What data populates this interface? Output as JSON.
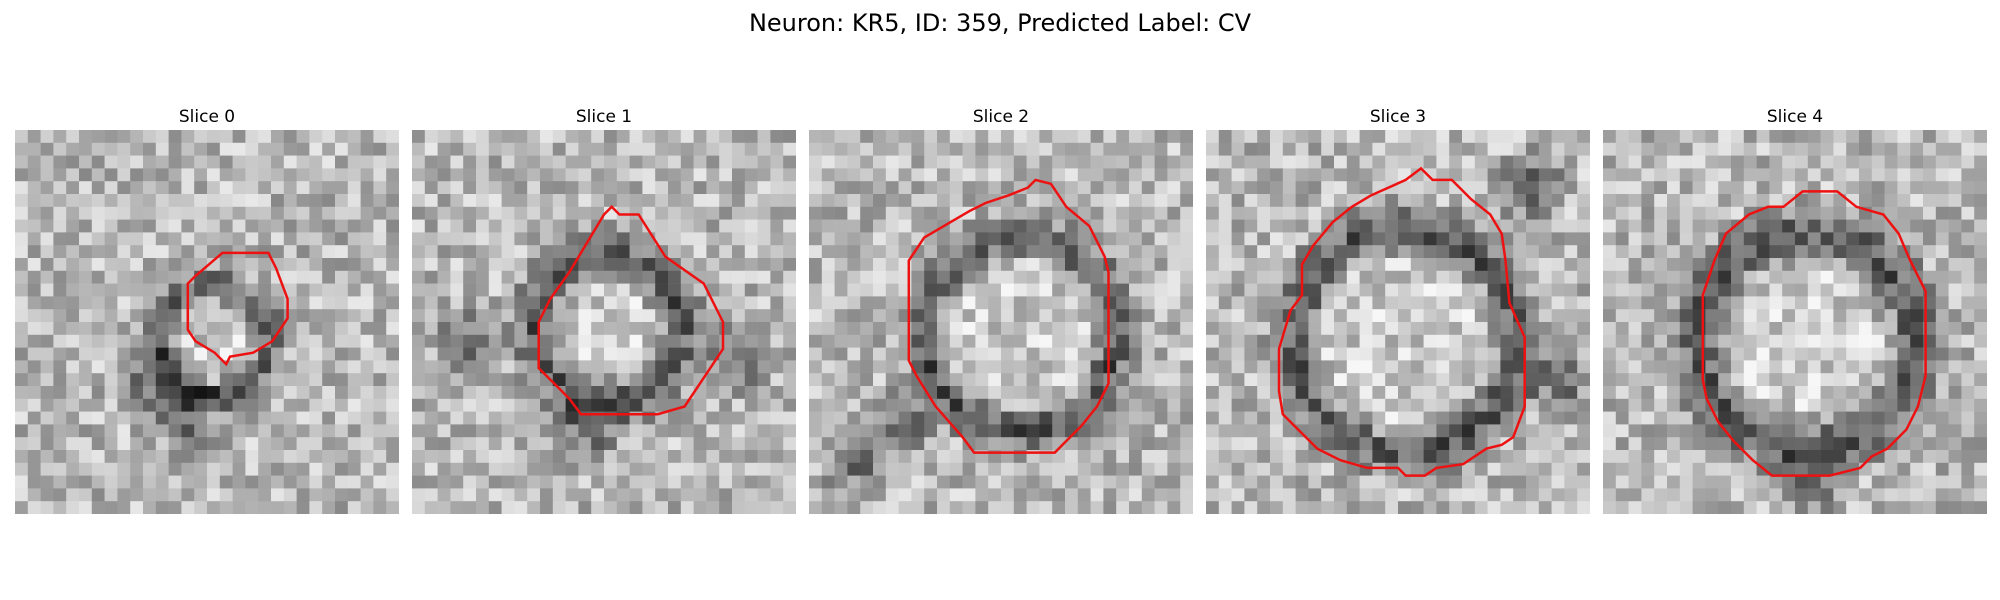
{
  "figure": {
    "title": "Neuron: KR5, ID: 359, Predicted Label: CV"
  },
  "panels": [
    {
      "title": "Slice 0",
      "contour_color": "#ee1111"
    },
    {
      "title": "Slice 1",
      "contour_color": "#ee1111"
    },
    {
      "title": "Slice 2",
      "contour_color": "#ee1111"
    },
    {
      "title": "Slice 3",
      "contour_color": "#ee1111"
    },
    {
      "title": "Slice 4",
      "contour_color": "#ee1111"
    }
  ]
}
